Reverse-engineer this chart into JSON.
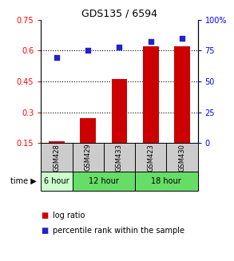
{
  "title": "GDS135 / 6594",
  "samples": [
    "GSM428",
    "GSM429",
    "GSM433",
    "GSM423",
    "GSM430"
  ],
  "log_ratio": [
    0.158,
    0.27,
    0.46,
    0.62,
    0.62
  ],
  "percentile_rank_pct": [
    69,
    75,
    78,
    82,
    85
  ],
  "left_ylim": [
    0.15,
    0.75
  ],
  "left_yticks": [
    0.15,
    0.3,
    0.45,
    0.6,
    0.75
  ],
  "right_ylim": [
    0,
    100
  ],
  "right_yticks": [
    0,
    25,
    50,
    75,
    100
  ],
  "bar_color": "#cc0000",
  "dot_color": "#2222cc",
  "background_color": "#ffffff",
  "sample_bg": "#cccccc",
  "time_groups": [
    {
      "label": "6 hour",
      "start": 0,
      "end": 0,
      "color": "#ccffcc"
    },
    {
      "label": "12 hour",
      "start": 1,
      "end": 2,
      "color": "#66dd66"
    },
    {
      "label": "18 hour",
      "start": 3,
      "end": 4,
      "color": "#66dd66"
    }
  ]
}
